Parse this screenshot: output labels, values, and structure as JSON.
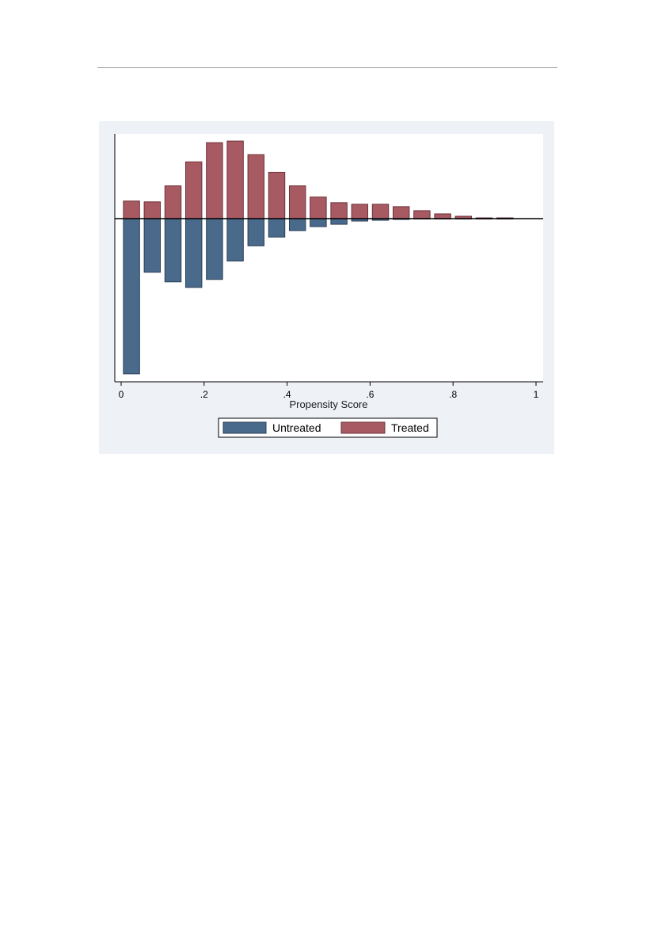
{
  "chart_data": {
    "type": "bar",
    "title": "",
    "xlabel": "Propensity Score",
    "ylabel": "",
    "xlim": [
      0,
      1
    ],
    "x_ticks": [
      "0",
      ".2",
      ".4",
      ".6",
      ".8",
      "1"
    ],
    "x_tick_values": [
      0,
      0.2,
      0.4,
      0.6,
      0.8,
      1
    ],
    "bin_centers": [
      0.025,
      0.075,
      0.125,
      0.175,
      0.225,
      0.275,
      0.325,
      0.375,
      0.425,
      0.475,
      0.525,
      0.575,
      0.625,
      0.675,
      0.725,
      0.775,
      0.825,
      0.875,
      0.925
    ],
    "series": [
      {
        "name": "Untreated",
        "color": "#4a6a8c",
        "values": [
          -1.94,
          -0.67,
          -0.79,
          -0.86,
          -0.76,
          -0.53,
          -0.34,
          -0.23,
          -0.15,
          -0.1,
          -0.07,
          -0.03,
          -0.02,
          -0.01,
          -0.005,
          -0.003,
          -0.002,
          -0.001,
          -0.001
        ]
      },
      {
        "name": "Treated",
        "color": "#a85a63",
        "values": [
          0.22,
          0.21,
          0.41,
          0.71,
          0.95,
          0.97,
          0.8,
          0.58,
          0.41,
          0.27,
          0.2,
          0.18,
          0.18,
          0.15,
          0.1,
          0.06,
          0.03,
          0.01,
          0.01
        ]
      }
    ],
    "ylim": [
      -2.04,
      1.06
    ],
    "grid": false,
    "legend_position": "bottom"
  }
}
